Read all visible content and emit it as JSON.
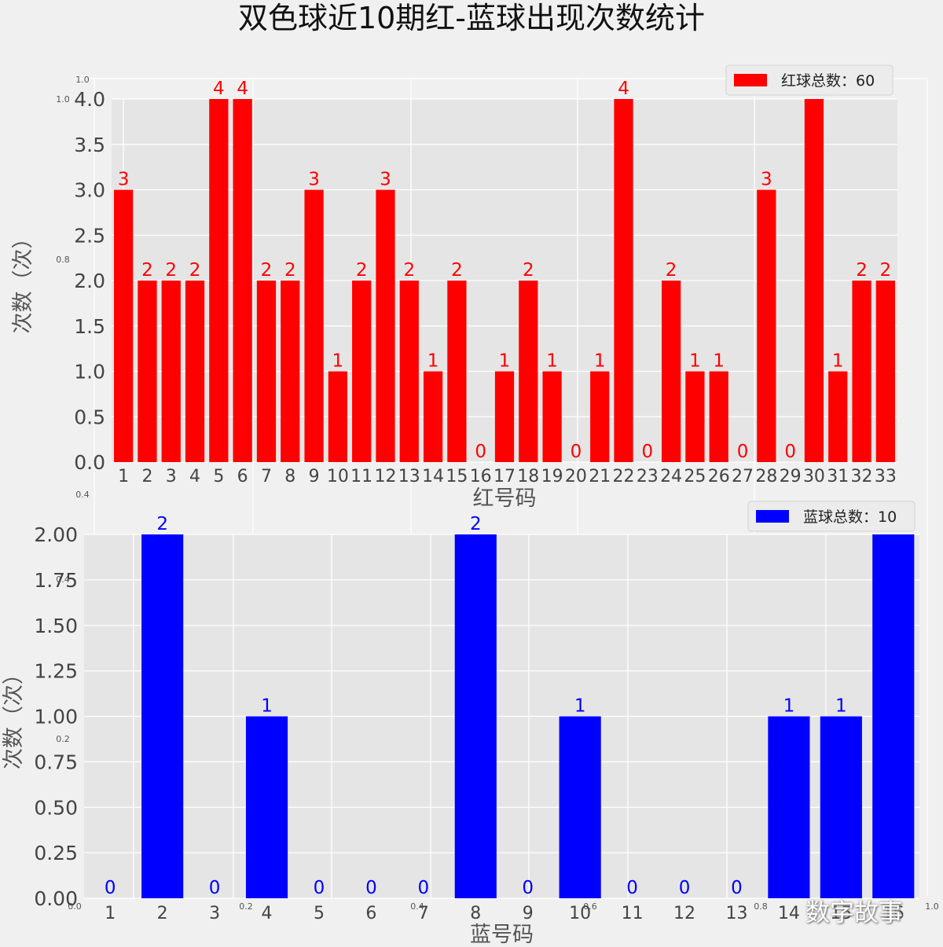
{
  "title": "双色球近10期红-蓝球出现次数统计",
  "watermark": "数字故事",
  "colors": {
    "background": "#f0f0f0",
    "plot_background": "#e5e5e5",
    "grid": "#ffffff",
    "red": "#ff0000",
    "blue": "#0000ff",
    "tick_text": "#444444"
  },
  "chart_data": [
    {
      "type": "bar",
      "ylabel": "次数（次）",
      "xlabel": "红号码",
      "legend": {
        "label": "红球总数：60",
        "location": "upper right"
      },
      "ylim": [
        0,
        4.0
      ],
      "yticks": [
        "0.0",
        "0.5",
        "1.0",
        "1.5",
        "2.0",
        "2.5",
        "3.0",
        "3.5",
        "4.0"
      ],
      "categories": [
        "1",
        "2",
        "3",
        "4",
        "5",
        "6",
        "7",
        "8",
        "9",
        "10",
        "11",
        "12",
        "13",
        "14",
        "15",
        "16",
        "17",
        "18",
        "19",
        "20",
        "21",
        "22",
        "23",
        "24",
        "25",
        "26",
        "27",
        "28",
        "29",
        "30",
        "31",
        "32",
        "33"
      ],
      "values": [
        3,
        2,
        2,
        2,
        4,
        4,
        2,
        2,
        3,
        1,
        2,
        3,
        2,
        1,
        2,
        0,
        1,
        2,
        1,
        0,
        1,
        4,
        0,
        2,
        1,
        1,
        0,
        3,
        0,
        4,
        1,
        2,
        2
      ],
      "grid": true
    },
    {
      "type": "bar",
      "ylabel": "次数（次）",
      "xlabel": "蓝号码",
      "legend": {
        "label": "蓝球总数：10",
        "location": "upper right"
      },
      "ylim": [
        0,
        2.0
      ],
      "yticks": [
        "0.00",
        "0.25",
        "0.50",
        "0.75",
        "1.00",
        "1.25",
        "1.50",
        "1.75",
        "2.00"
      ],
      "categories": [
        "1",
        "2",
        "3",
        "4",
        "5",
        "6",
        "7",
        "8",
        "9",
        "10",
        "11",
        "12",
        "13",
        "14",
        "15",
        "16"
      ],
      "values": [
        0,
        2,
        0,
        1,
        0,
        0,
        0,
        2,
        0,
        1,
        0,
        0,
        0,
        1,
        1,
        2
      ],
      "grid": true
    }
  ],
  "background_axes_ticks": {
    "y_top": [
      "1.0",
      "1.0",
      "0.8",
      "0.4"
    ],
    "y_bottom": [
      "0.4",
      "0.2"
    ],
    "x": [
      "0.0",
      "0.2",
      "0.4",
      "0.6",
      "0.8",
      "1.0"
    ]
  }
}
